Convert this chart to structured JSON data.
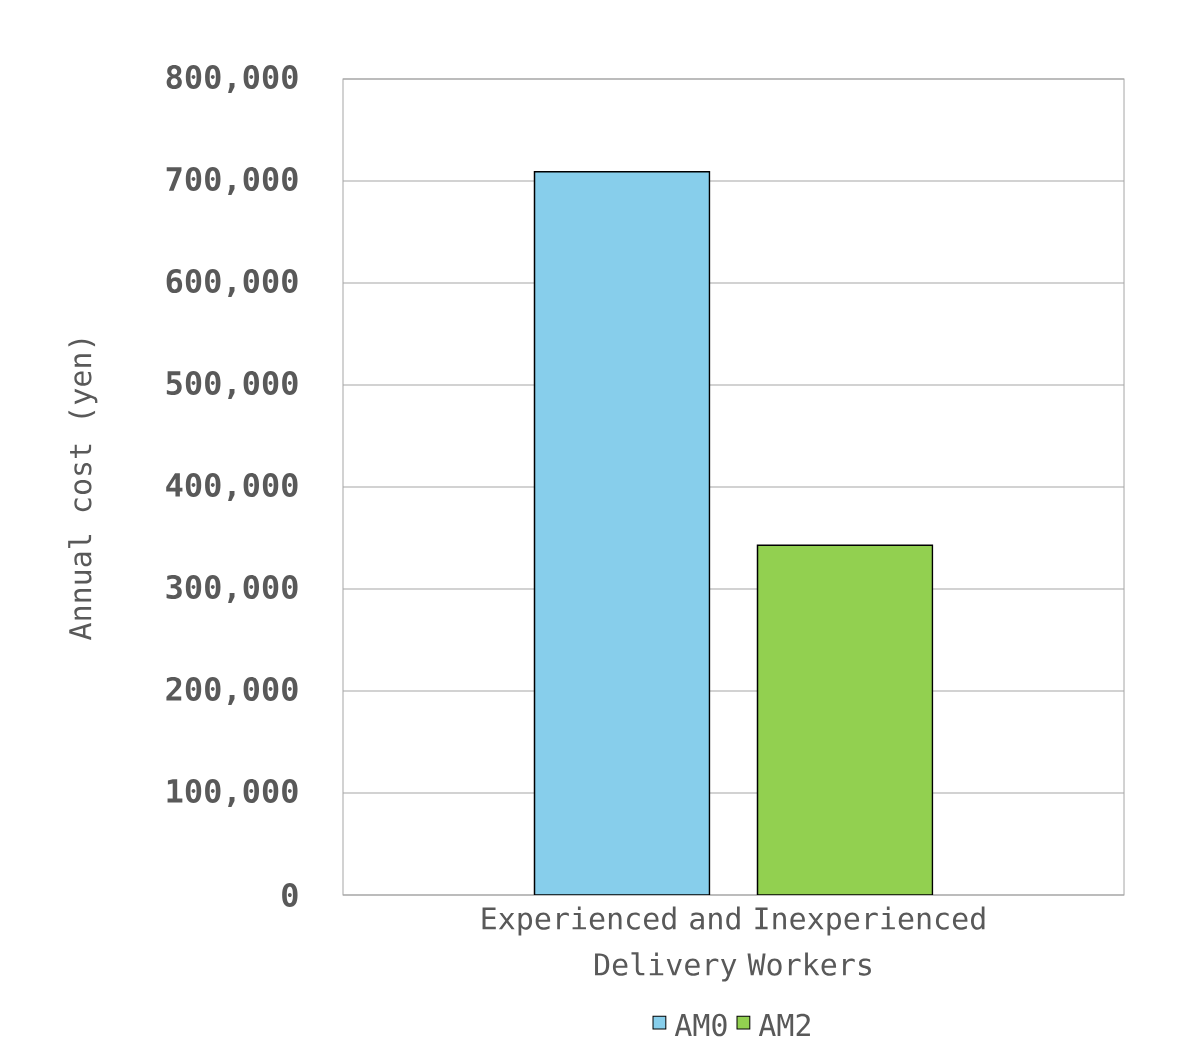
{
  "chart_data": {
    "type": "bar",
    "ylabel": "Annual cost (yen)",
    "categories": [
      "Experienced and Inexperienced Delivery Workers"
    ],
    "series": [
      {
        "name": "AM0",
        "color": "#87ceeb",
        "values": [
          709000
        ]
      },
      {
        "name": "AM2",
        "color": "#92d050",
        "values": [
          343000
        ]
      }
    ],
    "ylim": [
      0,
      800000
    ],
    "yticks": [
      {
        "value": 0,
        "label": "0"
      },
      {
        "value": 100000,
        "label": "100,000"
      },
      {
        "value": 200000,
        "label": "200,000"
      },
      {
        "value": 300000,
        "label": "300,000"
      },
      {
        "value": 400000,
        "label": "400,000"
      },
      {
        "value": 500000,
        "label": "500,000"
      },
      {
        "value": 600000,
        "label": "600,000"
      },
      {
        "value": 700000,
        "label": "700,000"
      },
      {
        "value": 800000,
        "label": "800,000"
      }
    ],
    "grid": "y",
    "legend": "bottom"
  }
}
